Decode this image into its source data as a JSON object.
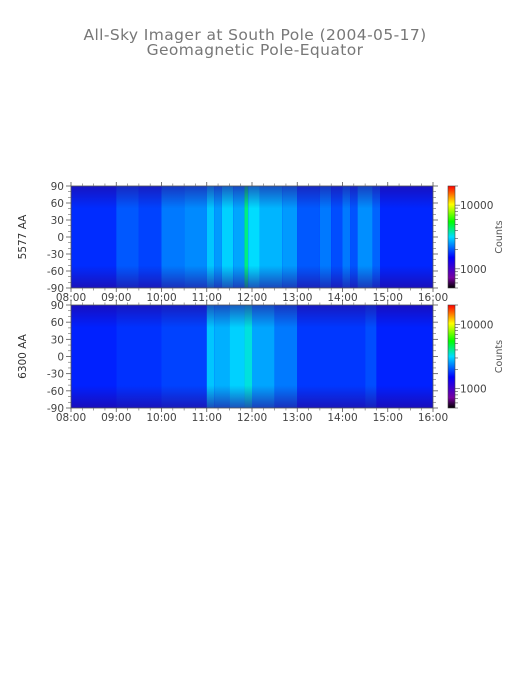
{
  "title": "All-Sky Imager at South Pole (2004-05-17)",
  "subtitle": "Geomagnetic Pole-Equator",
  "chart_data": [
    {
      "type": "heatmap",
      "ylabel": "5577 AA",
      "x_ticks": [
        "08:00",
        "09:00",
        "10:00",
        "11:00",
        "12:00",
        "13:00",
        "14:00",
        "15:00",
        "16:00"
      ],
      "xlim": [
        "08:00",
        "16:00"
      ],
      "y_ticks": [
        90,
        60,
        30,
        0,
        -30,
        -60,
        -90
      ],
      "ylim": [
        -90,
        90
      ],
      "colorbar": {
        "label": "Counts",
        "scale": "log",
        "range": [
          500,
          20000
        ],
        "ticks": [
          {
            "value": 10000,
            "label": "10000"
          },
          {
            "value": 1000,
            "label": "1000"
          }
        ]
      },
      "bands": [
        {
          "start": "08:00",
          "end": "09:00",
          "level": 0.08
        },
        {
          "start": "09:00",
          "end": "09:30",
          "level": 0.16
        },
        {
          "start": "09:30",
          "end": "10:00",
          "level": 0.12
        },
        {
          "start": "10:00",
          "end": "10:30",
          "level": 0.22
        },
        {
          "start": "10:30",
          "end": "11:00",
          "level": 0.25
        },
        {
          "start": "11:00",
          "end": "11:10",
          "level": 0.36
        },
        {
          "start": "11:10",
          "end": "11:20",
          "level": 0.28
        },
        {
          "start": "11:20",
          "end": "11:35",
          "level": 0.38
        },
        {
          "start": "11:35",
          "end": "11:50",
          "level": 0.3
        },
        {
          "start": "11:50",
          "end": "11:55",
          "level": 0.55
        },
        {
          "start": "11:55",
          "end": "12:10",
          "level": 0.4
        },
        {
          "start": "12:10",
          "end": "12:40",
          "level": 0.33
        },
        {
          "start": "12:40",
          "end": "13:00",
          "level": 0.28
        },
        {
          "start": "13:00",
          "end": "13:30",
          "level": 0.16
        },
        {
          "start": "13:30",
          "end": "13:45",
          "level": 0.22
        },
        {
          "start": "13:45",
          "end": "14:00",
          "level": 0.14
        },
        {
          "start": "14:00",
          "end": "14:10",
          "level": 0.22
        },
        {
          "start": "14:10",
          "end": "14:20",
          "level": 0.15
        },
        {
          "start": "14:20",
          "end": "14:40",
          "level": 0.26
        },
        {
          "start": "14:40",
          "end": "14:50",
          "level": 0.18
        },
        {
          "start": "14:50",
          "end": "16:00",
          "level": 0.07
        }
      ]
    },
    {
      "type": "heatmap",
      "ylabel": "6300 AA",
      "x_ticks": [
        "08:00",
        "09:00",
        "10:00",
        "11:00",
        "12:00",
        "13:00",
        "14:00",
        "15:00",
        "16:00"
      ],
      "xlim": [
        "08:00",
        "16:00"
      ],
      "y_ticks": [
        90,
        60,
        30,
        0,
        -30,
        -60,
        -90
      ],
      "ylim": [
        -90,
        90
      ],
      "colorbar": {
        "label": "Counts",
        "scale": "log",
        "range": [
          500,
          20000
        ],
        "ticks": [
          {
            "value": 10000,
            "label": "10000"
          },
          {
            "value": 1000,
            "label": "1000"
          }
        ]
      },
      "bands": [
        {
          "start": "08:00",
          "end": "09:00",
          "level": 0.06
        },
        {
          "start": "09:00",
          "end": "10:00",
          "level": 0.09
        },
        {
          "start": "10:00",
          "end": "11:00",
          "level": 0.12
        },
        {
          "start": "11:00",
          "end": "11:10",
          "level": 0.36
        },
        {
          "start": "11:10",
          "end": "11:30",
          "level": 0.32
        },
        {
          "start": "11:30",
          "end": "11:50",
          "level": 0.38
        },
        {
          "start": "11:50",
          "end": "12:00",
          "level": 0.44
        },
        {
          "start": "12:00",
          "end": "12:30",
          "level": 0.3
        },
        {
          "start": "12:30",
          "end": "13:00",
          "level": 0.22
        },
        {
          "start": "13:00",
          "end": "14:30",
          "level": 0.1
        },
        {
          "start": "14:30",
          "end": "14:45",
          "level": 0.14
        },
        {
          "start": "14:45",
          "end": "16:00",
          "level": 0.06
        }
      ]
    }
  ]
}
